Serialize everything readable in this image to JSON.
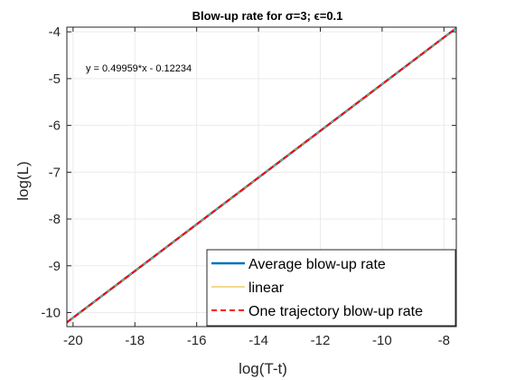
{
  "chart_data": {
    "type": "line",
    "title": "Blow-up rate for σ=3; ϵ=0.1",
    "xlabel": "log(T-t)",
    "ylabel": "log(L)",
    "xlim": [
      -20.2,
      -7.6
    ],
    "ylim": [
      -10.3,
      -3.9
    ],
    "xticks": [
      -20,
      -18,
      -16,
      -14,
      -12,
      -10,
      -8
    ],
    "yticks": [
      -10,
      -9,
      -8,
      -7,
      -6,
      -5,
      -4
    ],
    "xtick_labels": [
      "-20",
      "-18",
      "-16",
      "-14",
      "-12",
      "-10",
      "-8"
    ],
    "ytick_labels": [
      "-10",
      "-9",
      "-8",
      "-7",
      "-6",
      "-5",
      "-4"
    ],
    "grid": true,
    "legend_position": "bottom-right",
    "annotation": "y = 0.49959*x - 0.12234",
    "series": [
      {
        "name": "Average blow-up rate",
        "color": "#0072BD",
        "style": "solid",
        "x": [
          -20.2,
          -7.6
        ],
        "y": [
          -10.21,
          -3.92
        ]
      },
      {
        "name": "linear",
        "color": "#EDB120",
        "style": "solid",
        "x": [
          -20.2,
          -7.6
        ],
        "y": [
          -10.21,
          -3.92
        ]
      },
      {
        "name": "One trajectory blow-up rate",
        "color": "#FF0000",
        "style": "dashed",
        "x": [
          -20.2,
          -7.6
        ],
        "y": [
          -10.21,
          -3.92
        ]
      }
    ]
  },
  "colors": {
    "axes": "#262626",
    "grid": "#ebebeb",
    "background": "#ffffff"
  }
}
